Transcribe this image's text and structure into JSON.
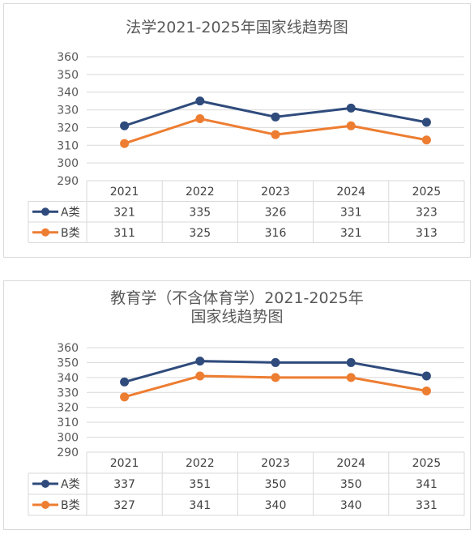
{
  "chart_data": [
    {
      "type": "line",
      "title": "法学2021-2025年国家线趋势图",
      "title_lines": [
        "法学2021-2025年国家线趋势图"
      ],
      "categories": [
        "2021",
        "2022",
        "2023",
        "2024",
        "2025"
      ],
      "ylim": [
        290,
        360
      ],
      "yticks": [
        290,
        300,
        310,
        320,
        330,
        340,
        350,
        360
      ],
      "grid": true,
      "legend": "data-table",
      "series": [
        {
          "name": "A类",
          "values": [
            321,
            335,
            326,
            331,
            323
          ],
          "color": "#2F4B7C"
        },
        {
          "name": "B类",
          "values": [
            311,
            325,
            316,
            321,
            313
          ],
          "color": "#ED7D31"
        }
      ]
    },
    {
      "type": "line",
      "title": "教育学（不含体育学）2021-2025年国家线趋势图",
      "title_lines": [
        "教育学（不含体育学）2021-2025年",
        "国家线趋势图"
      ],
      "categories": [
        "2021",
        "2022",
        "2023",
        "2024",
        "2025"
      ],
      "ylim": [
        290,
        360
      ],
      "yticks": [
        290,
        300,
        310,
        320,
        330,
        340,
        350,
        360
      ],
      "grid": true,
      "legend": "data-table",
      "series": [
        {
          "name": "A类",
          "values": [
            337,
            351,
            350,
            350,
            341
          ],
          "color": "#2F4B7C"
        },
        {
          "name": "B类",
          "values": [
            327,
            341,
            340,
            340,
            331
          ],
          "color": "#ED7D31"
        }
      ]
    }
  ]
}
